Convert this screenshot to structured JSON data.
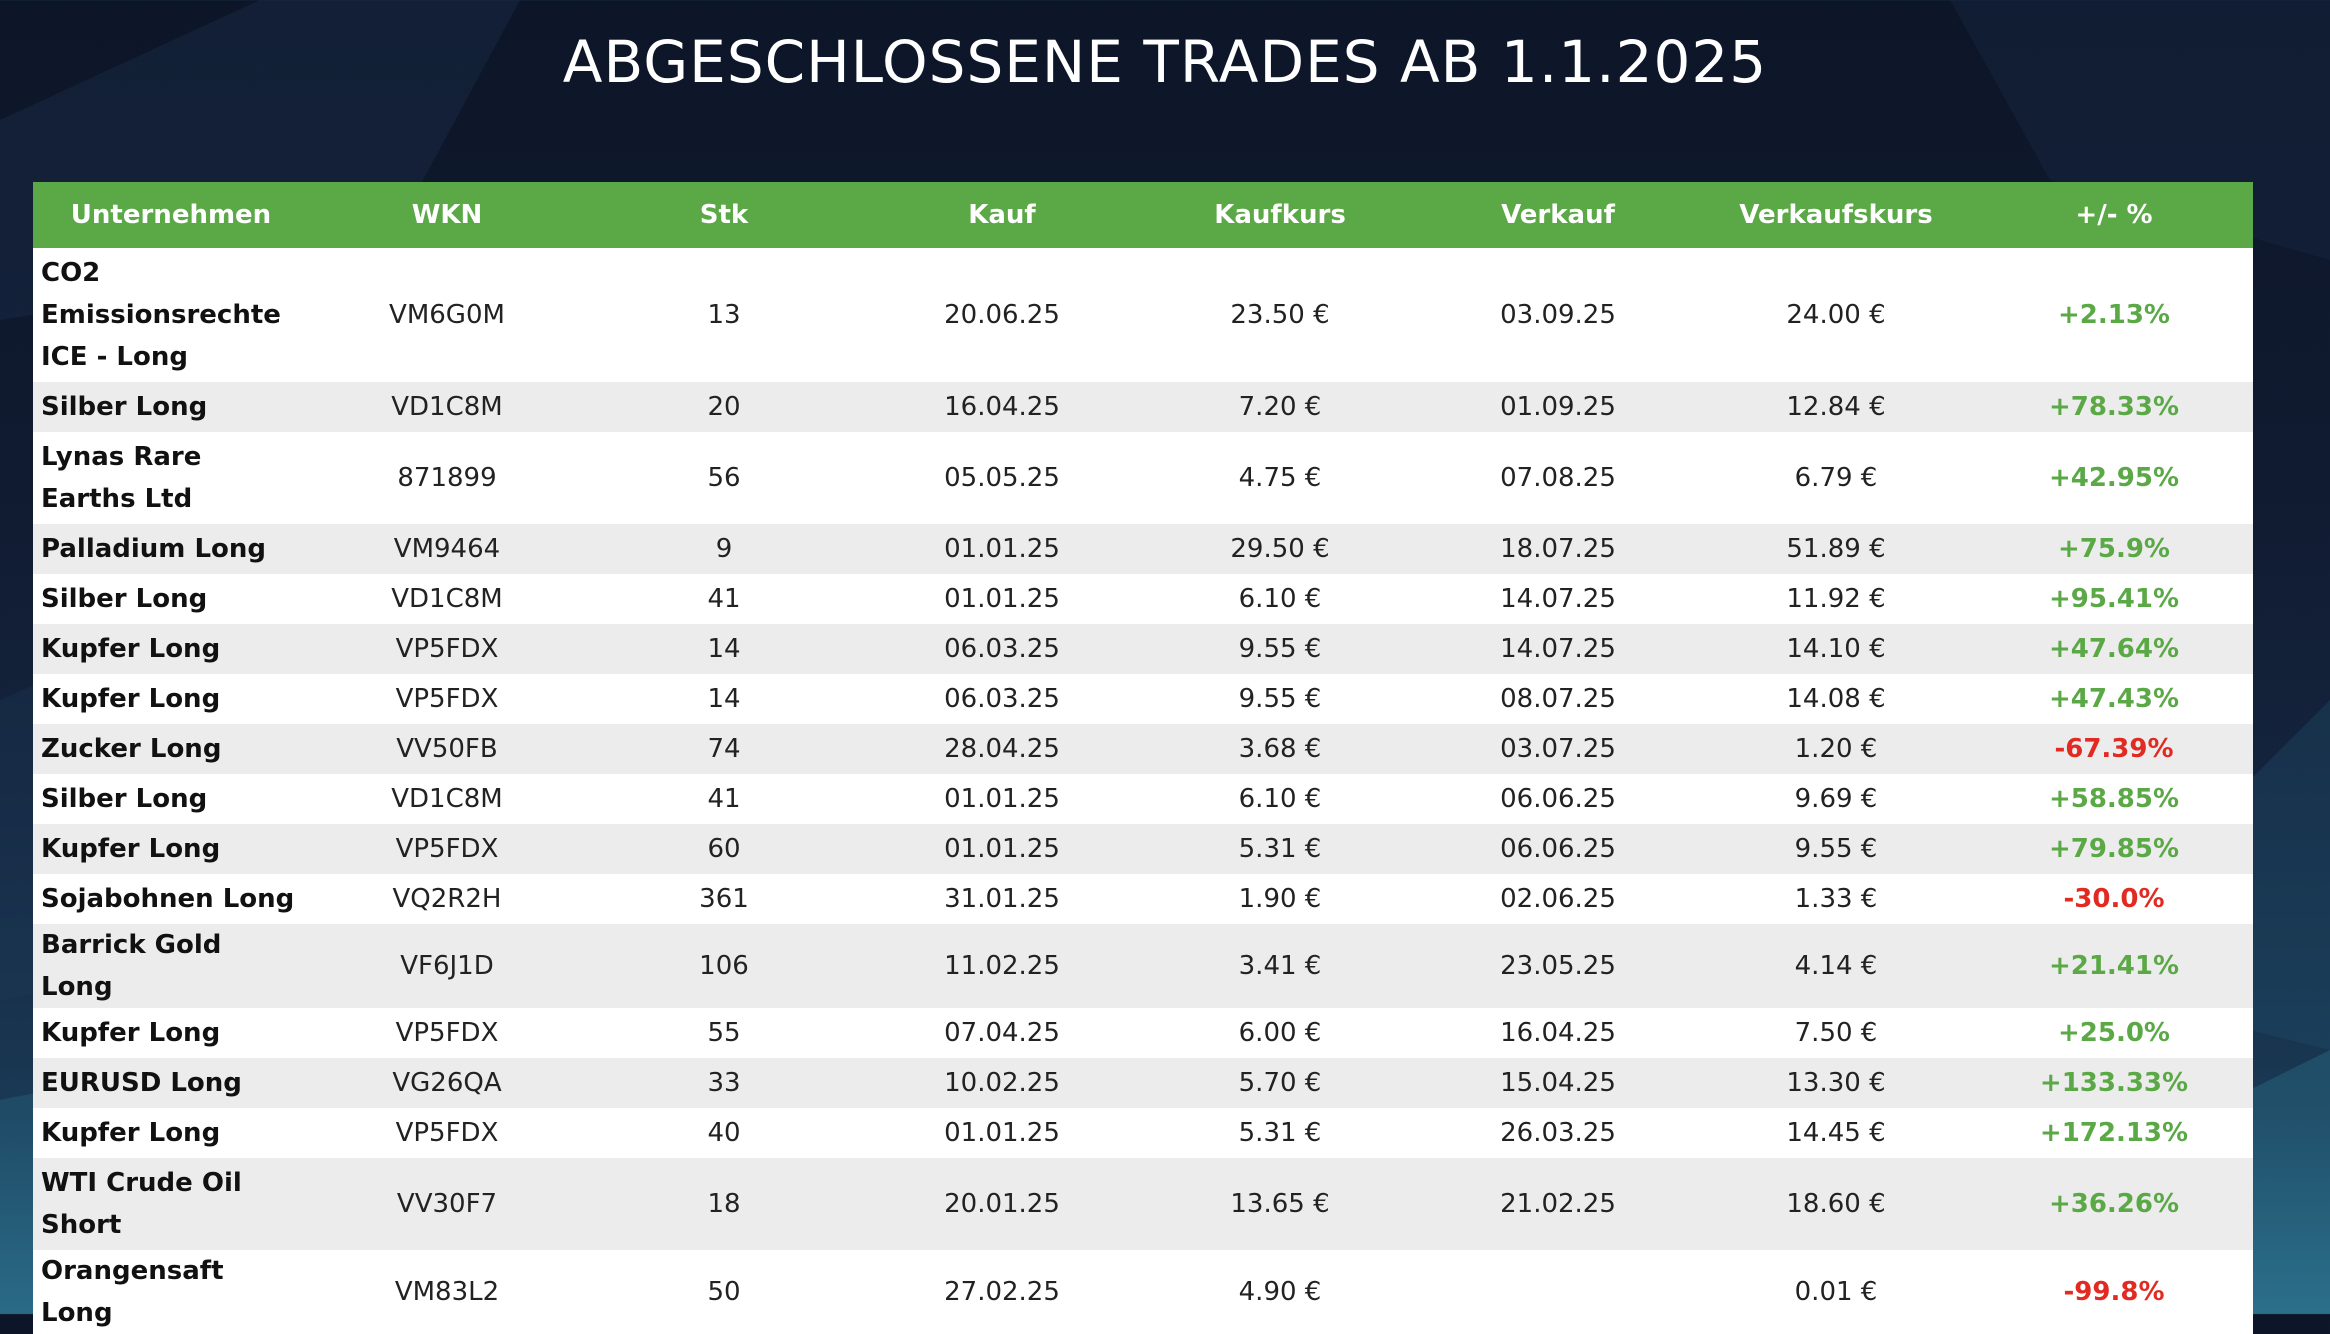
{
  "title": "ABGESCHLOSSENE TRADES AB 1.1.2025",
  "colors": {
    "header_bg": "#5ba846",
    "positive": "#5ba846",
    "negative": "#e12a21"
  },
  "table": {
    "headers": [
      "Unternehmen",
      "WKN",
      "Stk",
      "Kauf",
      "Kaufkurs",
      "Verkauf",
      "Verkaufskurs",
      "+/- %"
    ],
    "rows": [
      {
        "unternehmen": "CO2 Emissionsrechte ICE - Long",
        "wkn": "VM6G0M",
        "stk": "13",
        "kauf": "20.06.25",
        "kaufkurs": "23.50 €",
        "verkauf": "03.09.25",
        "verkaufskurs": "24.00 €",
        "pct": "+2.13%",
        "trend": "pos"
      },
      {
        "unternehmen": "Silber Long",
        "wkn": "VD1C8M",
        "stk": "20",
        "kauf": "16.04.25",
        "kaufkurs": "7.20 €",
        "verkauf": "01.09.25",
        "verkaufskurs": "12.84 €",
        "pct": "+78.33%",
        "trend": "pos"
      },
      {
        "unternehmen": "Lynas Rare Earths Ltd",
        "wkn": "871899",
        "stk": "56",
        "kauf": "05.05.25",
        "kaufkurs": "4.75 €",
        "verkauf": "07.08.25",
        "verkaufskurs": "6.79 €",
        "pct": "+42.95%",
        "trend": "pos"
      },
      {
        "unternehmen": "Palladium Long",
        "wkn": "VM9464",
        "stk": "9",
        "kauf": "01.01.25",
        "kaufkurs": "29.50 €",
        "verkauf": "18.07.25",
        "verkaufskurs": "51.89 €",
        "pct": "+75.9%",
        "trend": "pos"
      },
      {
        "unternehmen": "Silber Long",
        "wkn": "VD1C8M",
        "stk": "41",
        "kauf": "01.01.25",
        "kaufkurs": "6.10 €",
        "verkauf": "14.07.25",
        "verkaufskurs": "11.92 €",
        "pct": "+95.41%",
        "trend": "pos"
      },
      {
        "unternehmen": "Kupfer Long",
        "wkn": "VP5FDX",
        "stk": "14",
        "kauf": "06.03.25",
        "kaufkurs": "9.55 €",
        "verkauf": "14.07.25",
        "verkaufskurs": "14.10 €",
        "pct": "+47.64%",
        "trend": "pos"
      },
      {
        "unternehmen": "Kupfer Long",
        "wkn": "VP5FDX",
        "stk": "14",
        "kauf": "06.03.25",
        "kaufkurs": "9.55 €",
        "verkauf": "08.07.25",
        "verkaufskurs": "14.08 €",
        "pct": "+47.43%",
        "trend": "pos"
      },
      {
        "unternehmen": "Zucker Long",
        "wkn": "VV50FB",
        "stk": "74",
        "kauf": "28.04.25",
        "kaufkurs": "3.68 €",
        "verkauf": "03.07.25",
        "verkaufskurs": "1.20 €",
        "pct": "-67.39%",
        "trend": "neg"
      },
      {
        "unternehmen": "Silber Long",
        "wkn": "VD1C8M",
        "stk": "41",
        "kauf": "01.01.25",
        "kaufkurs": "6.10 €",
        "verkauf": "06.06.25",
        "verkaufskurs": "9.69 €",
        "pct": "+58.85%",
        "trend": "pos"
      },
      {
        "unternehmen": "Kupfer Long",
        "wkn": "VP5FDX",
        "stk": "60",
        "kauf": "01.01.25",
        "kaufkurs": "5.31 €",
        "verkauf": "06.06.25",
        "verkaufskurs": "9.55 €",
        "pct": "+79.85%",
        "trend": "pos"
      },
      {
        "unternehmen": "Sojabohnen Long",
        "wkn": "VQ2R2H",
        "stk": "361",
        "kauf": "31.01.25",
        "kaufkurs": "1.90 €",
        "verkauf": "02.06.25",
        "verkaufskurs": "1.33 €",
        "pct": "-30.0%",
        "trend": "neg"
      },
      {
        "unternehmen": "Barrick Gold Long",
        "wkn": "VF6J1D",
        "stk": "106",
        "kauf": "11.02.25",
        "kaufkurs": "3.41 €",
        "verkauf": "23.05.25",
        "verkaufskurs": "4.14 €",
        "pct": "+21.41%",
        "trend": "pos"
      },
      {
        "unternehmen": "Kupfer Long",
        "wkn": "VP5FDX",
        "stk": "55",
        "kauf": "07.04.25",
        "kaufkurs": "6.00 €",
        "verkauf": "16.04.25",
        "verkaufskurs": "7.50 €",
        "pct": "+25.0%",
        "trend": "pos"
      },
      {
        "unternehmen": "EURUSD Long",
        "wkn": "VG26QA",
        "stk": "33",
        "kauf": "10.02.25",
        "kaufkurs": "5.70 €",
        "verkauf": "15.04.25",
        "verkaufskurs": "13.30 €",
        "pct": "+133.33%",
        "trend": "pos"
      },
      {
        "unternehmen": "Kupfer Long",
        "wkn": "VP5FDX",
        "stk": "40",
        "kauf": "01.01.25",
        "kaufkurs": "5.31 €",
        "verkauf": "26.03.25",
        "verkaufskurs": "14.45 €",
        "pct": "+172.13%",
        "trend": "pos"
      },
      {
        "unternehmen": "WTI Crude Oil Short",
        "wkn": "VV30F7",
        "stk": "18",
        "kauf": "20.01.25",
        "kaufkurs": "13.65 €",
        "verkauf": "21.02.25",
        "verkaufskurs": "18.60 €",
        "pct": "+36.26%",
        "trend": "pos"
      },
      {
        "unternehmen": "Orangensaft Long",
        "wkn": "VM83L2",
        "stk": "50",
        "kauf": "27.02.25",
        "kaufkurs": "4.90 €",
        "verkauf": "",
        "verkaufskurs": "0.01 €",
        "pct": "-99.8%",
        "trend": "neg"
      }
    ]
  }
}
